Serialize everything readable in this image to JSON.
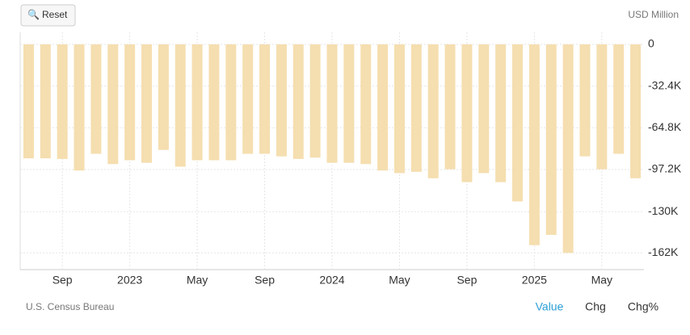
{
  "reset_button": "Reset",
  "unit_label": "USD Million",
  "source": "U.S. Census Bureau",
  "tabs": [
    "Value",
    "Chg",
    "Chg%"
  ],
  "chart_data": {
    "type": "bar",
    "color": "#f5deaf",
    "grid": true,
    "categories": [
      null,
      null,
      "Sep",
      null,
      null,
      null,
      "2023",
      null,
      null,
      null,
      "May",
      null,
      null,
      null,
      "Sep",
      null,
      null,
      null,
      "2024",
      null,
      null,
      null,
      "May",
      null,
      null,
      null,
      "Sep",
      null,
      null,
      null,
      "2025",
      null,
      null,
      null,
      "May",
      null,
      null
    ],
    "values": [
      -88500,
      -88500,
      -89000,
      -98000,
      -85000,
      -93000,
      -90000,
      -92000,
      -82000,
      -95000,
      -90000,
      -90000,
      -90000,
      -85000,
      -85000,
      -87000,
      -89000,
      -88000,
      -92000,
      -92000,
      -93000,
      -98000,
      -100000,
      -99000,
      -104000,
      -97000,
      -107000,
      -100000,
      -107000,
      -122000,
      -156000,
      -148000,
      -162000,
      -87000,
      -97000,
      -85000,
      -104000
    ],
    "ylim": [
      -175000,
      9400
    ],
    "yticks": [
      0,
      {
        "value": -32400,
        "label": "-32.4K"
      },
      {
        "value": -64800,
        "label": "-64.8K"
      },
      {
        "value": -97200,
        "label": "-97.2K"
      },
      {
        "value": -130000,
        "label": "-130K"
      },
      {
        "value": -162000,
        "label": "-162K"
      }
    ]
  }
}
